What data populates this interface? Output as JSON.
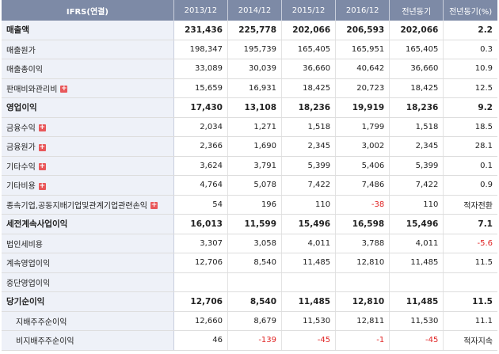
{
  "header": {
    "label": "IFRS(연결)",
    "cols": [
      "2013/12",
      "2014/12",
      "2015/12",
      "2016/12",
      "전년동기",
      "전년동기(%)"
    ]
  },
  "rows": [
    {
      "label": "매출액",
      "bold": true,
      "expand": false,
      "values": [
        "231,436",
        "225,778",
        "202,066",
        "206,593",
        "202,066",
        "2.2"
      ],
      "neg": []
    },
    {
      "label": "매출원가",
      "bold": false,
      "expand": false,
      "values": [
        "198,347",
        "195,739",
        "165,405",
        "165,951",
        "165,405",
        "0.3"
      ],
      "neg": []
    },
    {
      "label": "매출총이익",
      "bold": false,
      "expand": false,
      "values": [
        "33,089",
        "30,039",
        "36,660",
        "40,642",
        "36,660",
        "10.9"
      ],
      "neg": []
    },
    {
      "label": "판매비와관리비",
      "bold": false,
      "expand": true,
      "values": [
        "15,659",
        "16,931",
        "18,425",
        "20,723",
        "18,425",
        "12.5"
      ],
      "neg": []
    },
    {
      "label": "영업이익",
      "bold": true,
      "expand": false,
      "values": [
        "17,430",
        "13,108",
        "18,236",
        "19,919",
        "18,236",
        "9.2"
      ],
      "neg": []
    },
    {
      "label": "금융수익",
      "bold": false,
      "expand": true,
      "values": [
        "2,034",
        "1,271",
        "1,518",
        "1,799",
        "1,518",
        "18.5"
      ],
      "neg": []
    },
    {
      "label": "금융원가",
      "bold": false,
      "expand": true,
      "values": [
        "2,366",
        "1,690",
        "2,345",
        "3,002",
        "2,345",
        "28.1"
      ],
      "neg": []
    },
    {
      "label": "기타수익",
      "bold": false,
      "expand": true,
      "values": [
        "3,624",
        "3,791",
        "5,399",
        "5,406",
        "5,399",
        "0.1"
      ],
      "neg": []
    },
    {
      "label": "기타비용",
      "bold": false,
      "expand": true,
      "values": [
        "4,764",
        "5,078",
        "7,422",
        "7,486",
        "7,422",
        "0.9"
      ],
      "neg": []
    },
    {
      "label": "종속기업,공동지배기업및관계기업관련손익",
      "bold": false,
      "expand": true,
      "values": [
        "54",
        "196",
        "110",
        "-38",
        "110",
        "적자전환"
      ],
      "neg": [
        3
      ]
    },
    {
      "label": "세전계속사업이익",
      "bold": true,
      "expand": false,
      "values": [
        "16,013",
        "11,599",
        "15,496",
        "16,598",
        "15,496",
        "7.1"
      ],
      "neg": []
    },
    {
      "label": "법인세비용",
      "bold": false,
      "expand": false,
      "values": [
        "3,307",
        "3,058",
        "4,011",
        "3,788",
        "4,011",
        "-5.6"
      ],
      "neg": [
        5
      ]
    },
    {
      "label": "계속영업이익",
      "bold": false,
      "expand": false,
      "values": [
        "12,706",
        "8,540",
        "11,485",
        "12,810",
        "11,485",
        "11.5"
      ],
      "neg": []
    },
    {
      "label": "중단영업이익",
      "bold": false,
      "expand": false,
      "values": [
        "",
        "",
        "",
        "",
        "",
        ""
      ],
      "neg": []
    },
    {
      "label": "당기순이익",
      "bold": true,
      "expand": false,
      "values": [
        "12,706",
        "8,540",
        "11,485",
        "12,810",
        "11,485",
        "11.5"
      ],
      "neg": []
    },
    {
      "label": "지배주주순이익",
      "bold": false,
      "expand": false,
      "indent": true,
      "values": [
        "12,660",
        "8,679",
        "11,530",
        "12,811",
        "11,530",
        "11.1"
      ],
      "neg": []
    },
    {
      "label": "비지배주주순이익",
      "bold": false,
      "expand": false,
      "indent": true,
      "values": [
        "46",
        "-139",
        "-45",
        "-1",
        "-45",
        "적자지속"
      ],
      "neg": [
        1,
        2,
        3,
        4
      ]
    }
  ]
}
